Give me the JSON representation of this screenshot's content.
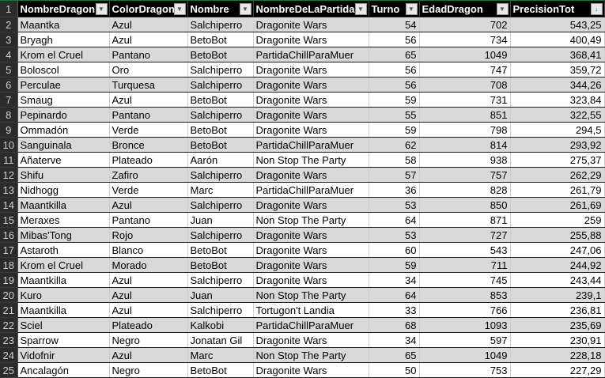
{
  "headers": [
    {
      "label": "NombreDragon",
      "filter": "▼"
    },
    {
      "label": "ColorDragon",
      "filter": "▼"
    },
    {
      "label": "Nombre",
      "filter": "▼"
    },
    {
      "label": "NombreDeLaPartida",
      "filter": "▼"
    },
    {
      "label": "Turno",
      "filter": "▼"
    },
    {
      "label": "EdadDragon",
      "filter": "▼"
    },
    {
      "label": "PrecisionTot",
      "filter": "↓"
    }
  ],
  "header_row_number": "1",
  "rows": [
    [
      "2",
      "Maantka",
      "Azul",
      "Salchiperro",
      "Dragonite Wars",
      "54",
      "702",
      "543,25"
    ],
    [
      "3",
      "Bryagh",
      "Azul",
      "BetoBot",
      "Dragonite Wars",
      "56",
      "734",
      "400,49"
    ],
    [
      "4",
      "Krom el Cruel",
      "Pantano",
      "BetoBot",
      "PartidaChillParaMuer",
      "65",
      "1049",
      "368,41"
    ],
    [
      "5",
      "Boloscol",
      "Oro",
      "Salchiperro",
      "Dragonite Wars",
      "56",
      "747",
      "359,72"
    ],
    [
      "6",
      "Perculae",
      "Turquesa",
      "Salchiperro",
      "Dragonite Wars",
      "56",
      "708",
      "344,26"
    ],
    [
      "7",
      "Smaug",
      "Azul",
      "BetoBot",
      "Dragonite Wars",
      "59",
      "731",
      "323,84"
    ],
    [
      "8",
      "Pepinardo",
      "Pantano",
      "Salchiperro",
      "Dragonite Wars",
      "55",
      "851",
      "322,55"
    ],
    [
      "9",
      "Ommadón",
      "Verde",
      "BetoBot",
      "Dragonite Wars",
      "59",
      "798",
      "294,5"
    ],
    [
      "10",
      "Sanguinala",
      "Bronce",
      "BetoBot",
      "PartidaChillParaMuer",
      "62",
      "814",
      "293,92"
    ],
    [
      "11",
      "Añaterve",
      "Plateado",
      "Aarón",
      "Non Stop The Party",
      "58",
      "938",
      "275,37"
    ],
    [
      "12",
      "Shifu",
      "Zafiro",
      "Salchiperro",
      "Dragonite Wars",
      "57",
      "757",
      "262,29"
    ],
    [
      "13",
      "Nidhogg",
      "Verde",
      "Marc",
      "PartidaChillParaMuer",
      "36",
      "828",
      "261,79"
    ],
    [
      "14",
      "Maantkilla",
      "Azul",
      "Salchiperro",
      "Dragonite Wars",
      "53",
      "850",
      "261,69"
    ],
    [
      "15",
      "Meraxes",
      "Pantano",
      "Juan",
      "Non Stop The Party",
      "64",
      "871",
      "259"
    ],
    [
      "16",
      "Mibas'Tong",
      "Rojo",
      "Salchiperro",
      "Dragonite Wars",
      "53",
      "727",
      "255,88"
    ],
    [
      "17",
      "Astaroth",
      "Blanco",
      "BetoBot",
      "Dragonite Wars",
      "60",
      "543",
      "247,06"
    ],
    [
      "18",
      "Krom el Cruel",
      "Morado",
      "BetoBot",
      "Dragonite Wars",
      "59",
      "711",
      "244,92"
    ],
    [
      "19",
      "Maantkilla",
      "Azul",
      "Salchiperro",
      "Dragonite Wars",
      "34",
      "745",
      "243,44"
    ],
    [
      "20",
      "Kuro",
      "Azul",
      "Juan",
      "Non Stop The Party",
      "64",
      "853",
      "239,1"
    ],
    [
      "21",
      "Maantkilla",
      "Azul",
      "Salchiperro",
      "Tortugon't Landia",
      "33",
      "766",
      "236,81"
    ],
    [
      "22",
      "Sciel",
      "Plateado",
      "Kalkobi",
      "PartidaChillParaMuer",
      "68",
      "1093",
      "235,69"
    ],
    [
      "23",
      "Sparrow",
      "Negro",
      "Jonatan Gil",
      "Dragonite Wars",
      "34",
      "597",
      "230,91"
    ],
    [
      "24",
      "Vidofnir",
      "Azul",
      "Marc",
      "Non Stop The Party",
      "65",
      "1049",
      "228,18"
    ],
    [
      "25",
      "Ancalagón",
      "Negro",
      "BetoBot",
      "Dragonite Wars",
      "50",
      "753",
      "227,29"
    ]
  ]
}
